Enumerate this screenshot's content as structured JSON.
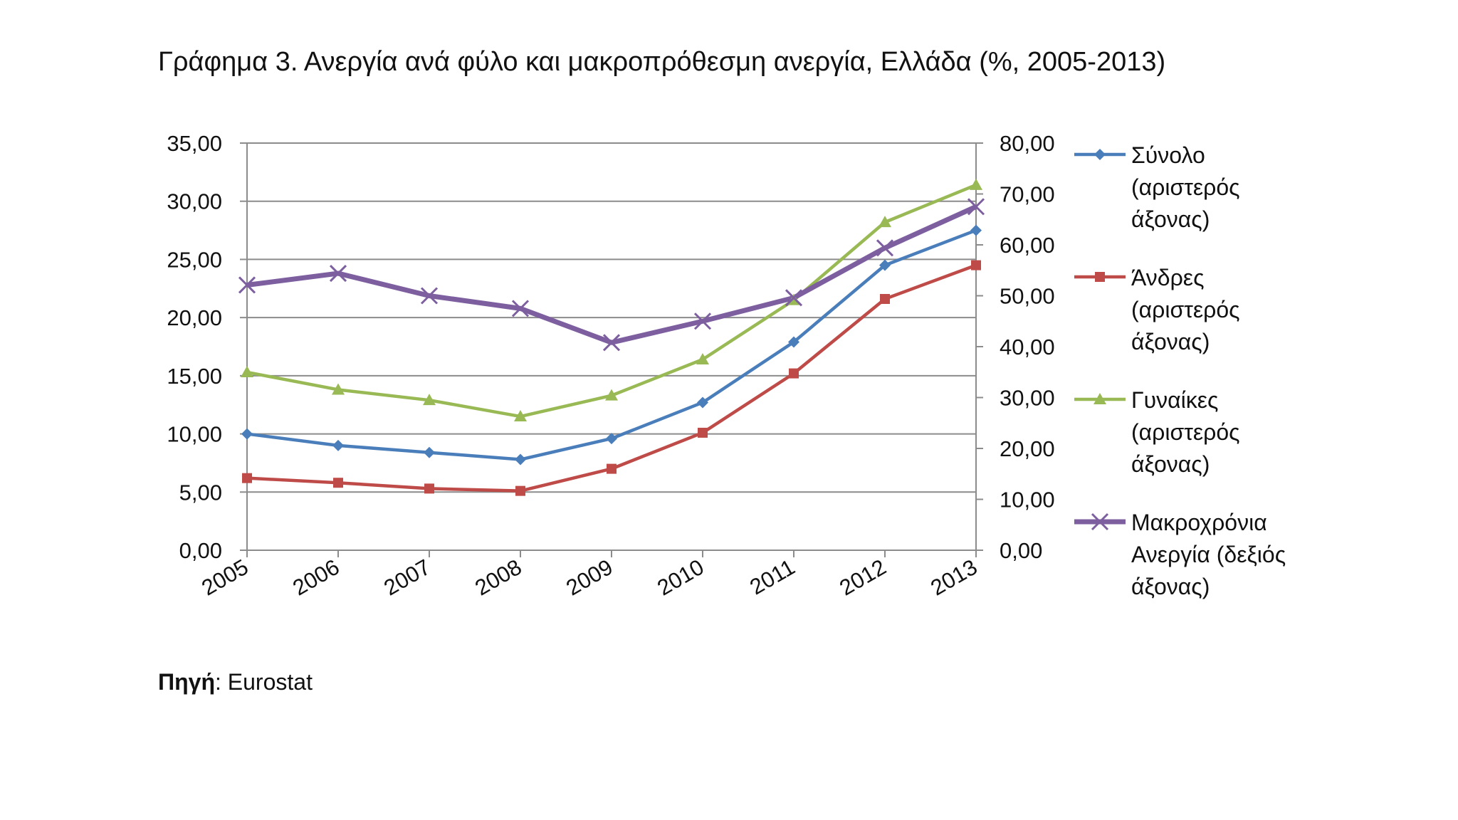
{
  "title": "Γράφημα 3. Ανεργία ανά φύλο και μακροπρόθεσμη ανεργία, Ελλάδα (%, 2005-2013)",
  "source": {
    "label": "Πηγή",
    "separator": ": ",
    "value": "Eurostat"
  },
  "chart_data": {
    "type": "line",
    "title": "Γράφημα 3. Ανεργία ανά φύλο και μακροπρόθεσμη ανεργία, Ελλάδα (%, 2005-2013)",
    "x": [
      "2005",
      "2006",
      "2007",
      "2008",
      "2009",
      "2010",
      "2011",
      "2012",
      "2013"
    ],
    "y_left": {
      "lim": [
        0,
        35
      ],
      "ticks": [
        "0,00",
        "5,00",
        "10,00",
        "15,00",
        "20,00",
        "25,00",
        "30,00",
        "35,00"
      ]
    },
    "y_right": {
      "lim": [
        0,
        80
      ],
      "ticks": [
        "0,00",
        "10,00",
        "20,00",
        "30,00",
        "40,00",
        "50,00",
        "60,00",
        "70,00",
        "80,00"
      ]
    },
    "grid": true,
    "legend_position": "right",
    "series": [
      {
        "name": "Σύνολο (αριστερός άξονας)",
        "axis": "left",
        "color": "#4a7ebb",
        "marker": "diamond",
        "values": [
          10.0,
          9.0,
          8.4,
          7.8,
          9.6,
          12.7,
          17.9,
          24.5,
          27.5
        ]
      },
      {
        "name": "Άνδρες (αριστερός άξονας)",
        "axis": "left",
        "color": "#be4b48",
        "marker": "square",
        "values": [
          6.2,
          5.8,
          5.3,
          5.1,
          7.0,
          10.1,
          15.2,
          21.6,
          24.5
        ]
      },
      {
        "name": "Γυναίκες (αριστερός άξονας)",
        "axis": "left",
        "color": "#98b954",
        "marker": "triangle",
        "values": [
          15.3,
          13.8,
          12.9,
          11.5,
          13.3,
          16.4,
          21.5,
          28.2,
          31.4
        ]
      },
      {
        "name": "Μακροχρόνια Ανεργία (δεξιός άξονας)",
        "axis": "right",
        "color": "#7d5fa0",
        "marker": "x",
        "values": [
          52.1,
          54.4,
          50.0,
          47.5,
          40.8,
          45.0,
          49.6,
          59.4,
          67.5
        ]
      }
    ]
  },
  "legend": [
    {
      "label": "Σύνολο\n(αριστερός\nάξονας)",
      "color": "#4a7ebb",
      "marker": "diamond"
    },
    {
      "label": "Άνδρες\n(αριστερός\nάξονας)",
      "color": "#be4b48",
      "marker": "square"
    },
    {
      "label": "Γυναίκες\n(αριστερός\nάξονας)",
      "color": "#98b954",
      "marker": "triangle"
    },
    {
      "label": "Μακροχρόνια\nΑνεργία (δεξιός\nάξονας)",
      "color": "#7d5fa0",
      "marker": "x"
    }
  ]
}
